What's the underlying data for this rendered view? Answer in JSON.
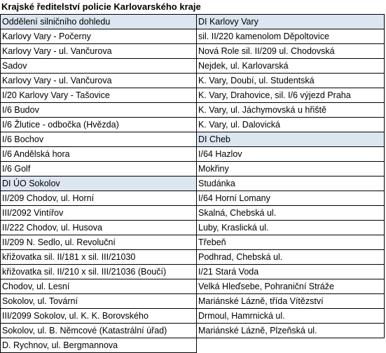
{
  "title": "Krajské ředitelství policie Karlovarského kraje",
  "header_color": "#dce6f1",
  "rows": [
    {
      "left": "Oddělení silničního dohledu",
      "left_header": true,
      "right": "DI Karlovy Vary",
      "right_header": true
    },
    {
      "left": "Karlovy Vary - Počerny",
      "right": "sil. II/220 kamenolom Děpoltovice"
    },
    {
      "left": "Karlovy Vary - ul. Vančurova",
      "right": "Nová Role sil. II/209 ul. Chodovská"
    },
    {
      "left": "Sadov",
      "right": "Nejdek, ul. Karlovarská"
    },
    {
      "left": "Karlovy Vary - ul. Vančurova",
      "right": "K. Vary, Doubí, ul. Studentská"
    },
    {
      "left": "I/20 Karlovy Vary - Tašovice",
      "right": "K. Vary, Drahovice, sil. I/6 výjezd Praha"
    },
    {
      "left": "I/6 Budov",
      "right": "K. Vary, ul. Jáchymovská u hřiště"
    },
    {
      "left": "I/6 Žlutice - odbočka (Hvězda)",
      "right": "K. Vary, ul. Dalovická"
    },
    {
      "left": "I/6 Bochov",
      "right": "DI Cheb",
      "right_header": true
    },
    {
      "left": "I/6 Andělská hora",
      "right": "I/64 Hazlov"
    },
    {
      "left": "I/6 Golf",
      "right": "Mokřiny"
    },
    {
      "left": "DI ÚO Sokolov",
      "left_header": true,
      "right": "Studánka"
    },
    {
      "left": "II/209 Chodov, ul. Horní",
      "right": "I/64 Horní Lomany"
    },
    {
      "left": "III/2092 Vintířov",
      "right": "Skalná, Chebská ul."
    },
    {
      "left": "II/222 Chodov, ul. Husova",
      "right": "Luby, Kraslická ul."
    },
    {
      "left": "II/209 N. Sedlo, ul. Revoluční",
      "right": "Třebeň"
    },
    {
      "left": "křižovatka sil. II/181 x sil. III/21030",
      "right": "Podhrad, Chebská ul."
    },
    {
      "left": "křižovatka sil. II/210 x sil. III/21036 (Boučí)",
      "right": "I/21 Stará Voda"
    },
    {
      "left": "Chodov, ul. Lesní",
      "right": "Velká Hleďsebe, Pohraniční Stráže"
    },
    {
      "left": "Sokolov, ul. Tovární",
      "right": "Mariánské Lázně, třída Vítězství"
    },
    {
      "left": "III/2099 Sokolov, ul. K. K. Borovského",
      "right": "Drmoul, Hamrnická ul."
    },
    {
      "left": "Sokolov, ul. B. Němcové (Katastrální úřad)",
      "right": "Mariánské Lázně, Plzeňská ul."
    },
    {
      "left": "D. Rychnov, ul. Bergmannova",
      "right": ""
    }
  ]
}
